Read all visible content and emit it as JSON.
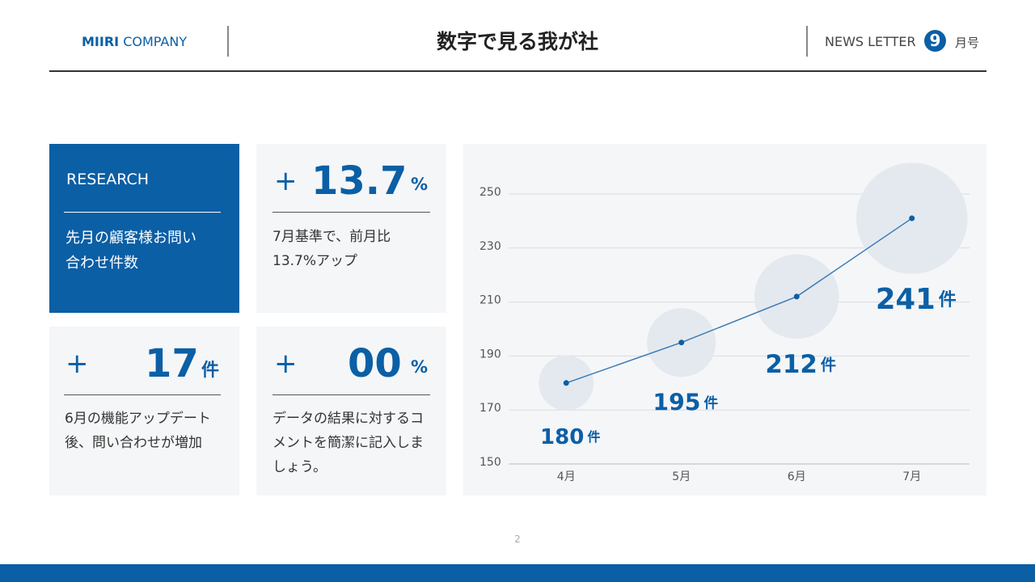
{
  "header": {
    "brand_bold": "MIIRI",
    "brand": "COMPANY",
    "title": "数字で見る我が社",
    "newsletter": "NEWS LETTER",
    "issue": "9",
    "issue_suffix": "月号"
  },
  "cards": [
    {
      "label": "RESEARCH",
      "lines": [
        "先月の顧客様お問い",
        "合わせ件数"
      ]
    },
    {
      "sign": "+",
      "number": "13.7",
      "unit": "%",
      "lines": [
        "7月基準で、前月比",
        "13.7%アップ"
      ]
    },
    {
      "sign": "+",
      "number": "17",
      "unit": "件",
      "lines": [
        "6月の機能アップデート",
        "後、問い合わせが増加"
      ]
    },
    {
      "sign": "+",
      "number": "00",
      "unit": "%",
      "lines": [
        "データの結果に対するコ",
        "メントを簡潔に記入しま",
        "しょう。"
      ]
    }
  ],
  "chart_data": {
    "type": "line",
    "categories": [
      "4月",
      "5月",
      "6月",
      "7月"
    ],
    "values": [
      180,
      195,
      212,
      241
    ],
    "unit": "件",
    "color": "#3a7bb5",
    "bubble_color": "#e4e9ef",
    "ylim": [
      150,
      250
    ],
    "yticks": [
      150,
      170,
      190,
      210,
      230,
      250
    ],
    "grid": true
  },
  "footer": {
    "page": "2"
  }
}
